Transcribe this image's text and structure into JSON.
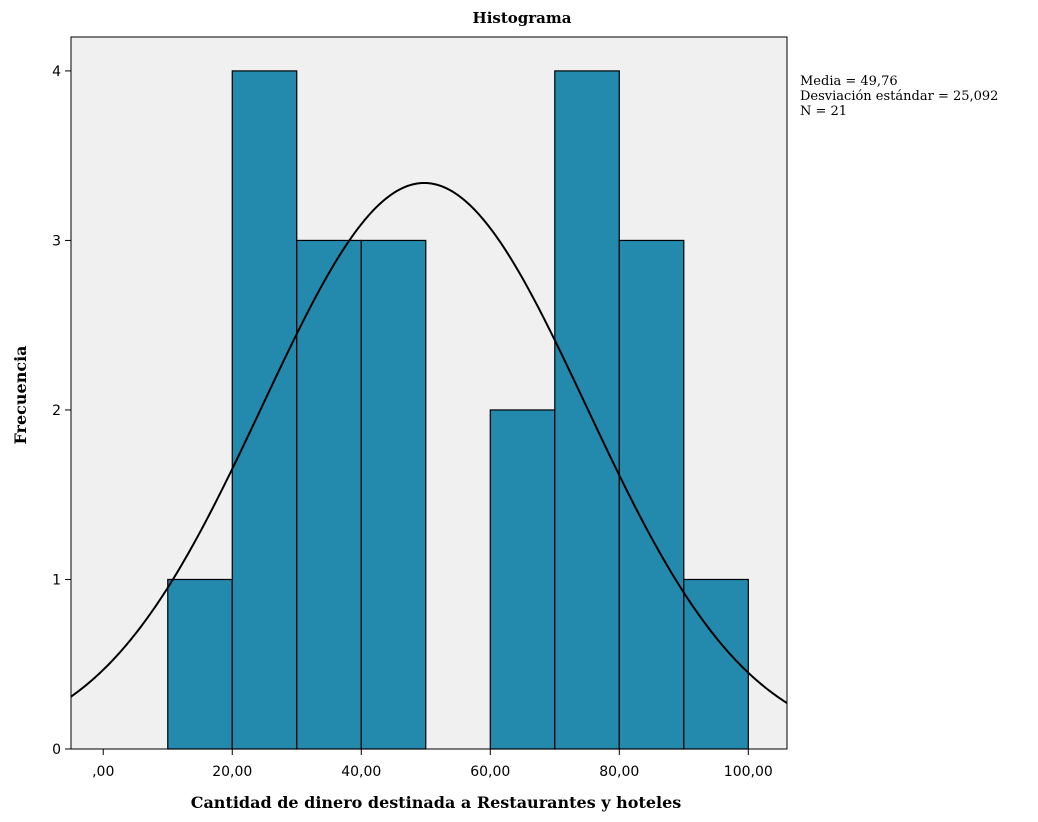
{
  "chart_data": {
    "type": "bar",
    "subtype": "histogram",
    "title": "Histograma",
    "xlabel": "Cantidad de dinero destinada a Restaurantes y hoteles",
    "ylabel": "Frecuencia",
    "xlim": [
      -5,
      106
    ],
    "ylim": [
      0,
      4.2
    ],
    "x_ticks": [
      0,
      20,
      40,
      60,
      80,
      100
    ],
    "x_tick_labels": [
      ",00",
      "20,00",
      "40,00",
      "60,00",
      "80,00",
      "100,00"
    ],
    "y_ticks": [
      0,
      1,
      2,
      3,
      4
    ],
    "y_tick_labels": [
      "0",
      "1",
      "2",
      "3",
      "4"
    ],
    "bin_width": 10,
    "bins": [
      {
        "start": 10,
        "end": 20,
        "count": 1
      },
      {
        "start": 20,
        "end": 30,
        "count": 4
      },
      {
        "start": 30,
        "end": 40,
        "count": 3
      },
      {
        "start": 40,
        "end": 50,
        "count": 3
      },
      {
        "start": 50,
        "end": 60,
        "count": 0
      },
      {
        "start": 60,
        "end": 70,
        "count": 2
      },
      {
        "start": 70,
        "end": 80,
        "count": 4
      },
      {
        "start": 80,
        "end": 90,
        "count": 3
      },
      {
        "start": 90,
        "end": 100,
        "count": 1
      }
    ],
    "normal_curve": {
      "mean": 49.76,
      "std": 25.092,
      "n": 21
    },
    "stats_text": [
      "Media = 49,76",
      "Desviación estándar = 25,092",
      "N = 21"
    ],
    "legend_position": "top-right",
    "grid": false,
    "colors": {
      "bar_fill": "#2389ad",
      "bar_edge": "#000000",
      "plot_bg": "#f0f0f0",
      "curve": "#000000"
    }
  }
}
